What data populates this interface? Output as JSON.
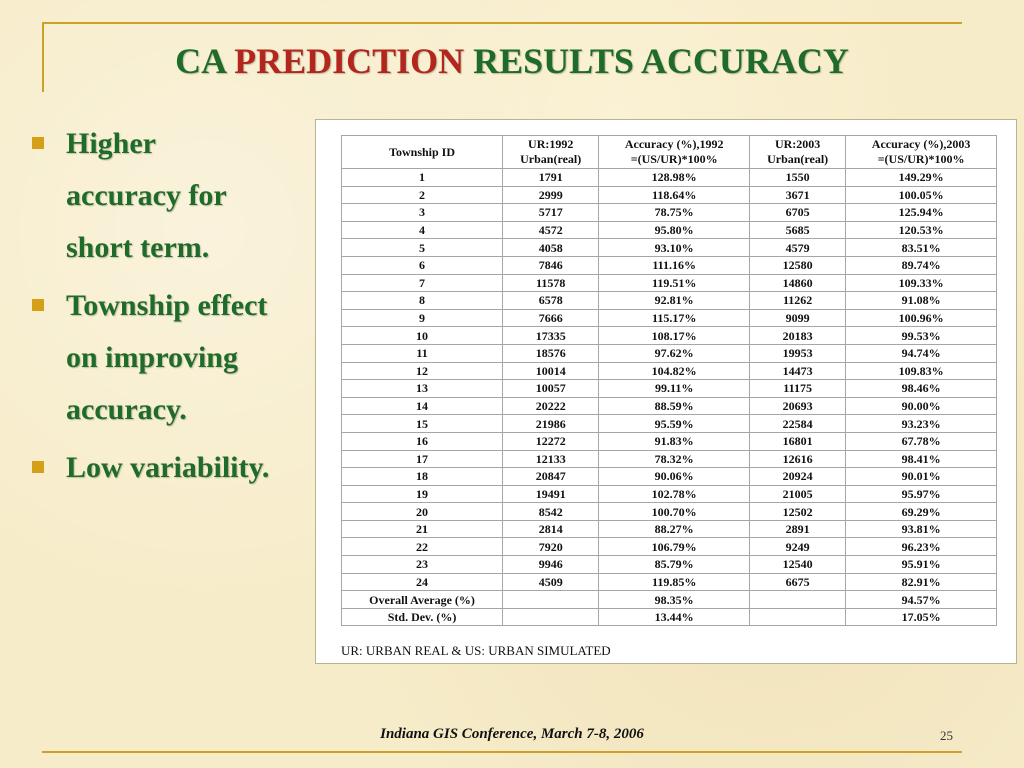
{
  "slide": {
    "title_part1": "CA ",
    "title_part2": "PREDICTION",
    "title_part3": " RESULTS ACCURACY",
    "bullets": [
      [
        "Higher",
        "accuracy for",
        "short term."
      ],
      [
        "Township effect",
        "on improving",
        "accuracy."
      ],
      [
        "Low variability."
      ]
    ],
    "footer": "Indiana GIS Conference, March 7-8, 2006",
    "page_number": "25"
  },
  "colors": {
    "title_green": "#1f6b2a",
    "title_red": "#b3261e",
    "accent_gold": "#c9a227",
    "bullet_gold": "#d4a017"
  },
  "table": {
    "headers": [
      [
        "Township ID"
      ],
      [
        "UR:1992",
        "Urban(real)"
      ],
      [
        "Accuracy (%),1992",
        "=(US/UR)*100%"
      ],
      [
        "UR:2003",
        "Urban(real)"
      ],
      [
        "Accuracy (%),2003",
        "=(US/UR)*100%"
      ]
    ],
    "rows": [
      [
        "1",
        "1791",
        "128.98%",
        "1550",
        "149.29%"
      ],
      [
        "2",
        "2999",
        "118.64%",
        "3671",
        "100.05%"
      ],
      [
        "3",
        "5717",
        "78.75%",
        "6705",
        "125.94%"
      ],
      [
        "4",
        "4572",
        "95.80%",
        "5685",
        "120.53%"
      ],
      [
        "5",
        "4058",
        "93.10%",
        "4579",
        "83.51%"
      ],
      [
        "6",
        "7846",
        "111.16%",
        "12580",
        "89.74%"
      ],
      [
        "7",
        "11578",
        "119.51%",
        "14860",
        "109.33%"
      ],
      [
        "8",
        "6578",
        "92.81%",
        "11262",
        "91.08%"
      ],
      [
        "9",
        "7666",
        "115.17%",
        "9099",
        "100.96%"
      ],
      [
        "10",
        "17335",
        "108.17%",
        "20183",
        "99.53%"
      ],
      [
        "11",
        "18576",
        "97.62%",
        "19953",
        "94.74%"
      ],
      [
        "12",
        "10014",
        "104.82%",
        "14473",
        "109.83%"
      ],
      [
        "13",
        "10057",
        "99.11%",
        "11175",
        "98.46%"
      ],
      [
        "14",
        "20222",
        "88.59%",
        "20693",
        "90.00%"
      ],
      [
        "15",
        "21986",
        "95.59%",
        "22584",
        "93.23%"
      ],
      [
        "16",
        "12272",
        "91.83%",
        "16801",
        "67.78%"
      ],
      [
        "17",
        "12133",
        "78.32%",
        "12616",
        "98.41%"
      ],
      [
        "18",
        "20847",
        "90.06%",
        "20924",
        "90.01%"
      ],
      [
        "19",
        "19491",
        "102.78%",
        "21005",
        "95.97%"
      ],
      [
        "20",
        "8542",
        "100.70%",
        "12502",
        "69.29%"
      ],
      [
        "21",
        "2814",
        "88.27%",
        "2891",
        "93.81%"
      ],
      [
        "22",
        "7920",
        "106.79%",
        "9249",
        "96.23%"
      ],
      [
        "23",
        "9946",
        "85.79%",
        "12540",
        "95.91%"
      ],
      [
        "24",
        "4509",
        "119.85%",
        "6675",
        "82.91%"
      ],
      [
        "Overall Average (%)",
        "",
        "98.35%",
        "",
        "94.57%"
      ],
      [
        "Std. Dev. (%)",
        "",
        "13.44%",
        "",
        "17.05%"
      ]
    ],
    "footnote": "UR: URBAN REAL & US: URBAN SIMULATED"
  }
}
